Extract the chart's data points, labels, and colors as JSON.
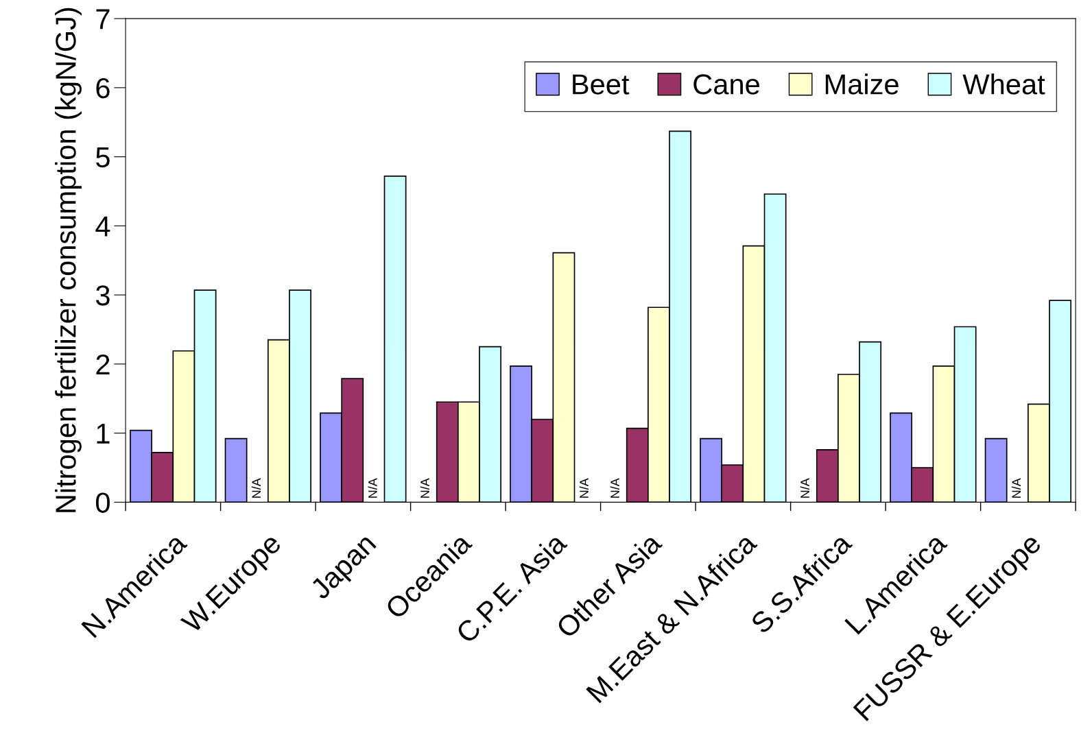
{
  "chart_data": {
    "type": "bar",
    "ylabel": "Nitrogen fertilizer consumption (kgN/GJ)",
    "categories": [
      "N.America",
      "W.Europe",
      "Japan",
      "Oceania",
      "C.P.E. Asia",
      "Other Asia",
      "M.East & N.Africa",
      "S.S.Africa",
      "L.America",
      "FUSSR & E.Europe"
    ],
    "series": [
      {
        "name": "Beet",
        "color": "#9999ff",
        "values": [
          1.04,
          0.92,
          1.29,
          null,
          1.97,
          null,
          0.92,
          null,
          1.29,
          0.92
        ],
        "value_labels": [
          null,
          null,
          null,
          "N/A",
          null,
          "N/A",
          null,
          "N/A",
          null,
          null
        ]
      },
      {
        "name": "Cane",
        "color": "#993366",
        "values": [
          0.72,
          null,
          1.79,
          1.45,
          1.2,
          1.07,
          0.54,
          0.76,
          0.5,
          null
        ],
        "value_labels": [
          null,
          "N/A",
          null,
          null,
          null,
          null,
          null,
          null,
          null,
          "N/A"
        ]
      },
      {
        "name": "Maize",
        "color": "#ffffcc",
        "values": [
          2.19,
          2.35,
          null,
          1.45,
          3.61,
          2.82,
          3.71,
          1.85,
          1.97,
          1.42
        ],
        "value_labels": [
          null,
          null,
          "N/A",
          null,
          null,
          null,
          null,
          null,
          null,
          null
        ]
      },
      {
        "name": "Wheat",
        "color": "#ccffff",
        "values": [
          3.07,
          3.07,
          4.72,
          2.25,
          null,
          5.37,
          4.46,
          2.32,
          2.54,
          2.92
        ],
        "value_labels": [
          null,
          null,
          null,
          null,
          "N/A",
          null,
          null,
          null,
          null,
          null
        ]
      }
    ],
    "ylim": [
      0,
      7
    ],
    "yticks": [
      0,
      1,
      2,
      3,
      4,
      5,
      6,
      7
    ],
    "grid": false,
    "legend": "top right"
  }
}
